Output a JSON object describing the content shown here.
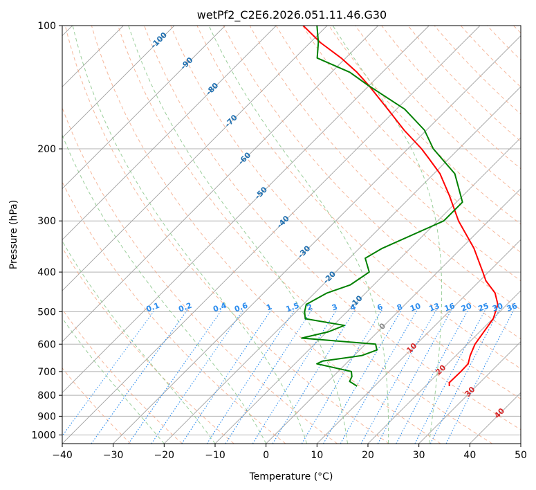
{
  "chart_data": {
    "type": "line",
    "subtype": "skew-t log-p diagram",
    "title": "wetPf2_C2E6.2026.051.11.46.G30",
    "xlabel": "Temperature (°C)",
    "ylabel": "Pressure (hPa)",
    "xlim": [
      -40,
      50
    ],
    "ylim": [
      1050,
      100
    ],
    "y_scale": "log",
    "x_ticks": [
      -40,
      -30,
      -20,
      -10,
      0,
      10,
      20,
      30,
      40,
      50
    ],
    "x_tick_labels": [
      "−40",
      "−30",
      "−20",
      "−10",
      "0",
      "10",
      "20",
      "30",
      "40",
      "50"
    ],
    "y_ticks": [
      100,
      200,
      300,
      400,
      500,
      600,
      700,
      800,
      900,
      1000
    ],
    "y_tick_labels": [
      "100",
      "200",
      "300",
      "400",
      "500",
      "600",
      "700",
      "800",
      "900",
      "1000"
    ],
    "grid": true,
    "colors": {
      "temperature": "#ff0000",
      "dewpoint": "#008000",
      "isotherm": "#999999",
      "dry_adiabat": "#f4a582",
      "moist_adiabat": "#8fc98f",
      "mixing_ratio": "#2b8cee",
      "label_isotherm_neg": "#1f6fb0",
      "label_isotherm_zero": "#888888",
      "label_isotherm_pos": "#d62728",
      "label_mixing_ratio": "#2b8cee"
    },
    "series": [
      {
        "name": "Temperature",
        "color": "#ff0000",
        "points": [
          {
            "p": 760,
            "t": 24.7
          },
          {
            "p": 745,
            "t": 24.0
          },
          {
            "p": 700,
            "t": 24.1
          },
          {
            "p": 670,
            "t": 24.0
          },
          {
            "p": 640,
            "t": 22.8
          },
          {
            "p": 600,
            "t": 21.5
          },
          {
            "p": 570,
            "t": 21.0
          },
          {
            "p": 520,
            "t": 20.1
          },
          {
            "p": 480,
            "t": 18.2
          },
          {
            "p": 450,
            "t": 15.4
          },
          {
            "p": 420,
            "t": 11.2
          },
          {
            "p": 400,
            "t": 8.9
          },
          {
            "p": 350,
            "t": 2.5
          },
          {
            "p": 300,
            "t": -5.9
          },
          {
            "p": 260,
            "t": -12.7
          },
          {
            "p": 230,
            "t": -18.8
          },
          {
            "p": 210,
            "t": -24.3
          },
          {
            "p": 200,
            "t": -27.3
          },
          {
            "p": 180,
            "t": -34.4
          },
          {
            "p": 160,
            "t": -41.7
          },
          {
            "p": 140,
            "t": -50.1
          },
          {
            "p": 130,
            "t": -55.0
          },
          {
            "p": 120,
            "t": -60.9
          },
          {
            "p": 110,
            "t": -68.0
          },
          {
            "p": 100,
            "t": -74.7
          }
        ]
      },
      {
        "name": "Dewpoint",
        "color": "#008000",
        "points": [
          {
            "p": 760,
            "t": 6.6
          },
          {
            "p": 740,
            "t": 4.2
          },
          {
            "p": 720,
            "t": 3.7
          },
          {
            "p": 700,
            "t": 2.6
          },
          {
            "p": 670,
            "t": -5.7
          },
          {
            "p": 660,
            "t": -5.1
          },
          {
            "p": 640,
            "t": 1.5
          },
          {
            "p": 620,
            "t": 3.4
          },
          {
            "p": 600,
            "t": 2.0
          },
          {
            "p": 580,
            "t": -13.7
          },
          {
            "p": 560,
            "t": -9.7
          },
          {
            "p": 540,
            "t": -7.8
          },
          {
            "p": 520,
            "t": -16.8
          },
          {
            "p": 500,
            "t": -18.3
          },
          {
            "p": 480,
            "t": -19.4
          },
          {
            "p": 450,
            "t": -17.6
          },
          {
            "p": 430,
            "t": -14.6
          },
          {
            "p": 400,
            "t": -13.4
          },
          {
            "p": 370,
            "t": -16.9
          },
          {
            "p": 350,
            "t": -15.5
          },
          {
            "p": 300,
            "t": -8.8
          },
          {
            "p": 270,
            "t": -8.8
          },
          {
            "p": 230,
            "t": -15.9
          },
          {
            "p": 200,
            "t": -25.0
          },
          {
            "p": 180,
            "t": -30.4
          },
          {
            "p": 160,
            "t": -38.4
          },
          {
            "p": 140,
            "t": -50.2
          },
          {
            "p": 130,
            "t": -56.4
          },
          {
            "p": 120,
            "t": -65.6
          },
          {
            "p": 110,
            "t": -68.4
          },
          {
            "p": 100,
            "t": -72.0
          }
        ]
      }
    ],
    "isotherm_labels": [
      {
        "text": "-100",
        "value": -100,
        "p": 108
      },
      {
        "text": "-90",
        "value": -90,
        "p": 123
      },
      {
        "text": "-80",
        "value": -80,
        "p": 142
      },
      {
        "text": "-70",
        "value": -70,
        "p": 170
      },
      {
        "text": "-60",
        "value": -60,
        "p": 210
      },
      {
        "text": "-50",
        "value": -50,
        "p": 255
      },
      {
        "text": "-40",
        "value": -40,
        "p": 300
      },
      {
        "text": "-30",
        "value": -30,
        "p": 355
      },
      {
        "text": "-20",
        "value": -20,
        "p": 410
      },
      {
        "text": "-10",
        "value": -10,
        "p": 470
      },
      {
        "text": "0",
        "value": 0,
        "p": 540
      },
      {
        "text": "10",
        "value": 10,
        "p": 610
      },
      {
        "text": "20",
        "value": 20,
        "p": 690
      },
      {
        "text": "30",
        "value": 30,
        "p": 780
      },
      {
        "text": "40",
        "value": 40,
        "p": 880
      }
    ],
    "mixing_ratio_labels": [
      {
        "text": "0.1",
        "value": 0.1
      },
      {
        "text": "0.2",
        "value": 0.2
      },
      {
        "text": "0.4",
        "value": 0.4
      },
      {
        "text": "0.6",
        "value": 0.6
      },
      {
        "text": "1",
        "value": 1
      },
      {
        "text": "1.5",
        "value": 1.5
      },
      {
        "text": "2",
        "value": 2
      },
      {
        "text": "3",
        "value": 3
      },
      {
        "text": "4",
        "value": 4
      },
      {
        "text": "6",
        "value": 6
      },
      {
        "text": "8",
        "value": 8
      },
      {
        "text": "10",
        "value": 10
      },
      {
        "text": "13",
        "value": 13
      },
      {
        "text": "16",
        "value": 16
      },
      {
        "text": "20",
        "value": 20
      },
      {
        "text": "25",
        "value": 25
      },
      {
        "text": "30",
        "value": 30
      },
      {
        "text": "36",
        "value": 36
      }
    ]
  }
}
